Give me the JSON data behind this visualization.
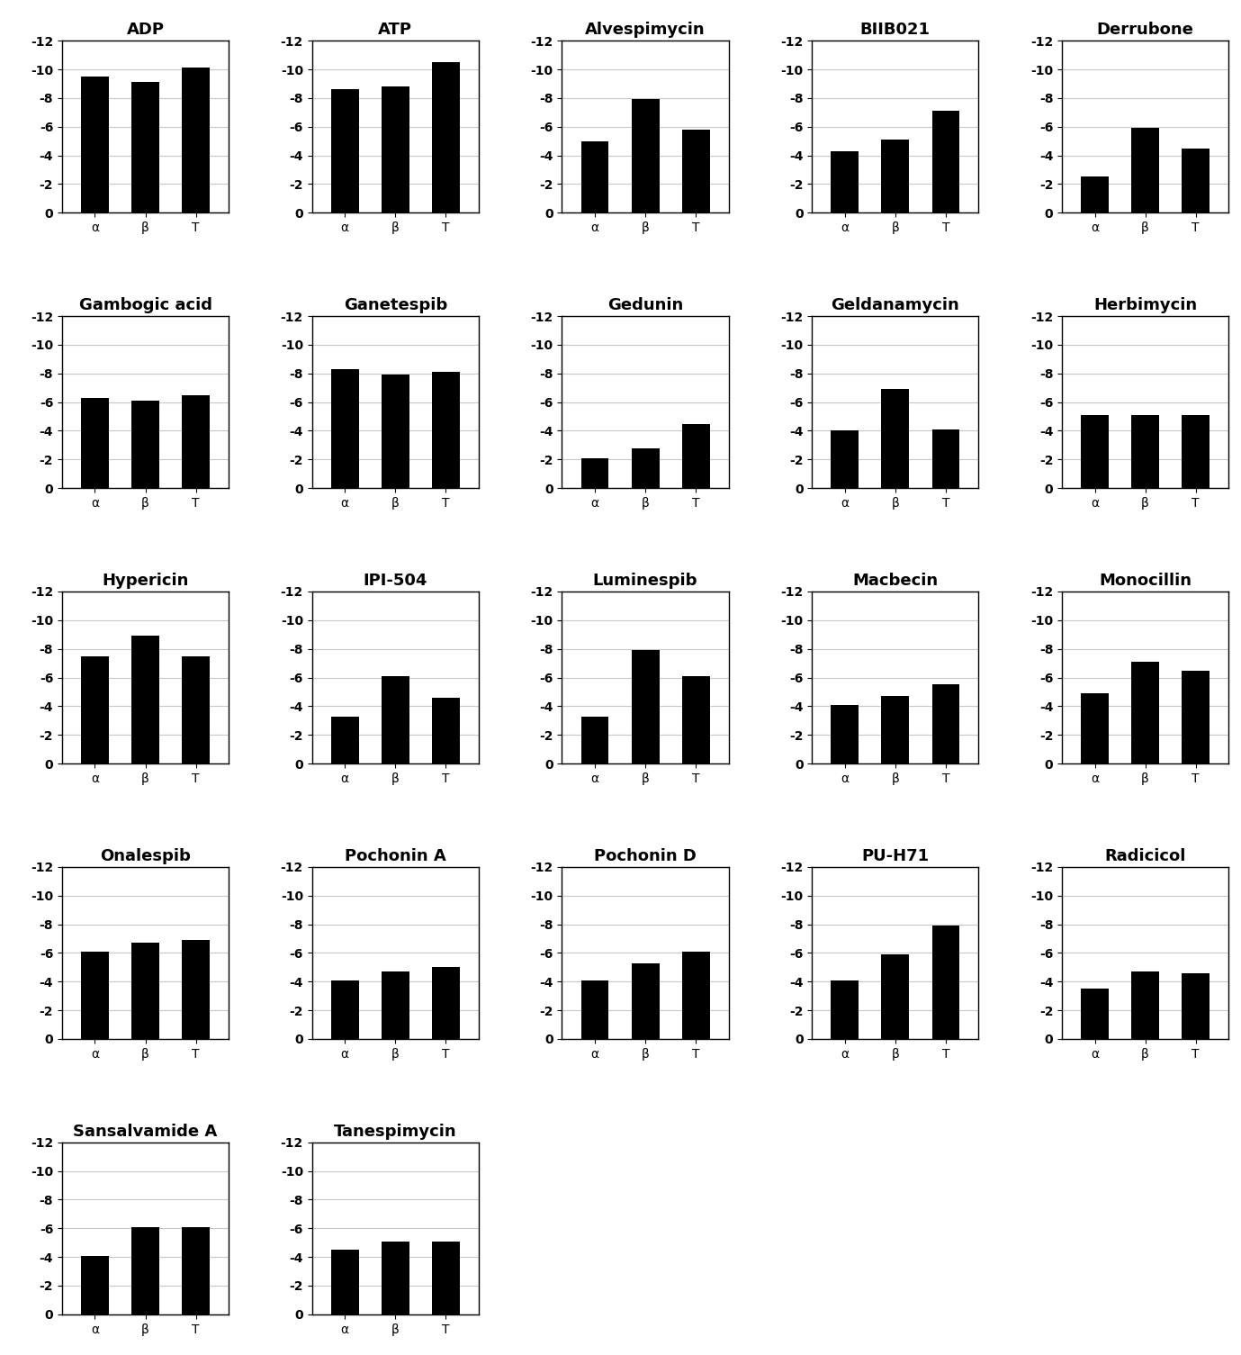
{
  "charts": [
    {
      "title": "ADP",
      "values": [
        -9.5,
        -9.1,
        -10.1
      ]
    },
    {
      "title": "ATP",
      "values": [
        -8.6,
        -8.8,
        -10.5
      ]
    },
    {
      "title": "Alvespimycin",
      "values": [
        -5.0,
        -7.9,
        -5.8
      ]
    },
    {
      "title": "BIIB021",
      "values": [
        -4.3,
        -5.1,
        -7.1
      ]
    },
    {
      "title": "Derrubone",
      "values": [
        -2.5,
        -5.9,
        -4.5
      ]
    },
    {
      "title": "Gambogic acid",
      "values": [
        -6.3,
        -6.1,
        -6.5
      ]
    },
    {
      "title": "Ganetespib",
      "values": [
        -8.3,
        -7.9,
        -8.1
      ]
    },
    {
      "title": "Gedunin",
      "values": [
        -2.1,
        -2.8,
        -4.5
      ]
    },
    {
      "title": "Geldanamycin",
      "values": [
        -4.0,
        -6.9,
        -4.1
      ]
    },
    {
      "title": "Herbimycin",
      "values": [
        -5.1,
        -5.1,
        -5.1
      ]
    },
    {
      "title": "Hypericin",
      "values": [
        -7.5,
        -8.9,
        -7.5
      ]
    },
    {
      "title": "IPI-504",
      "values": [
        -3.3,
        -6.1,
        -4.6
      ]
    },
    {
      "title": "Luminespib",
      "values": [
        -3.3,
        -7.9,
        -6.1
      ]
    },
    {
      "title": "Macbecin",
      "values": [
        -4.1,
        -4.7,
        -5.5
      ]
    },
    {
      "title": "Monocillin",
      "values": [
        -4.9,
        -7.1,
        -6.5
      ]
    },
    {
      "title": "Onalespib",
      "values": [
        -6.1,
        -6.7,
        -6.9
      ]
    },
    {
      "title": "Pochonin A",
      "values": [
        -4.1,
        -4.7,
        -5.0
      ]
    },
    {
      "title": "Pochonin D",
      "values": [
        -4.1,
        -5.3,
        -6.1
      ]
    },
    {
      "title": "PU-H71",
      "values": [
        -4.1,
        -5.9,
        -7.9
      ]
    },
    {
      "title": "Radicicol",
      "values": [
        -3.5,
        -4.7,
        -4.6
      ]
    },
    {
      "title": "Sansalvamide A",
      "values": [
        -4.1,
        -6.1,
        -6.1
      ]
    },
    {
      "title": "Tanespimycin",
      "values": [
        -4.5,
        -5.1,
        -5.1
      ]
    }
  ],
  "x_labels": [
    "α",
    "β",
    "T"
  ],
  "ylim": [
    -12,
    0
  ],
  "yticks": [
    -12,
    -10,
    -8,
    -6,
    -4,
    -2,
    0
  ],
  "bar_color": "#000000",
  "bar_width": 0.55,
  "grid_color": "#c8c8c8",
  "title_fontsize": 13,
  "tick_fontsize": 10,
  "n_cols": 5
}
